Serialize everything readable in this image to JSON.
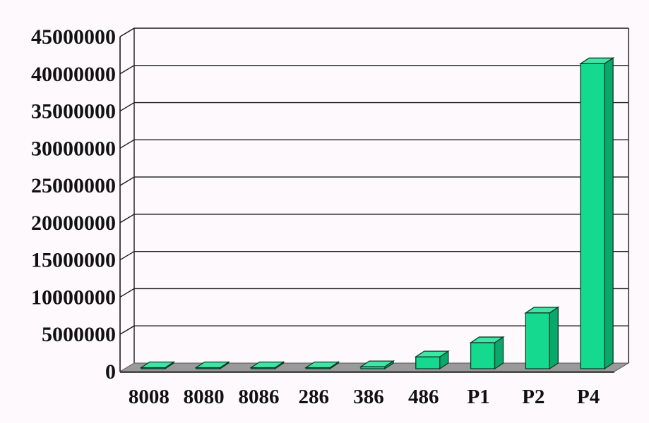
{
  "chart_data": {
    "type": "bar",
    "style": "3d-column",
    "title": "",
    "xlabel": "",
    "ylabel": "",
    "categories": [
      "8008",
      "8080",
      "8086",
      "286",
      "386",
      "486",
      "P1",
      "P2",
      "P4"
    ],
    "values": [
      3500,
      6000,
      29000,
      134000,
      275000,
      1600000,
      3500000,
      7500000,
      41000000
    ],
    "ylim": [
      0,
      45000000
    ],
    "yticks": [
      0,
      5000000,
      10000000,
      15000000,
      20000000,
      25000000,
      30000000,
      35000000,
      40000000,
      45000000
    ],
    "grid": true,
    "legend": "none",
    "colors": {
      "bar_front": "#15d98e",
      "bar_top": "#3ee6a6",
      "bar_side": "#0aa86b",
      "bar_edge": "#0b3a26",
      "floor": "#9a9a9a",
      "gridline": "#1a1a1a",
      "background": "#fdf9fd"
    }
  }
}
